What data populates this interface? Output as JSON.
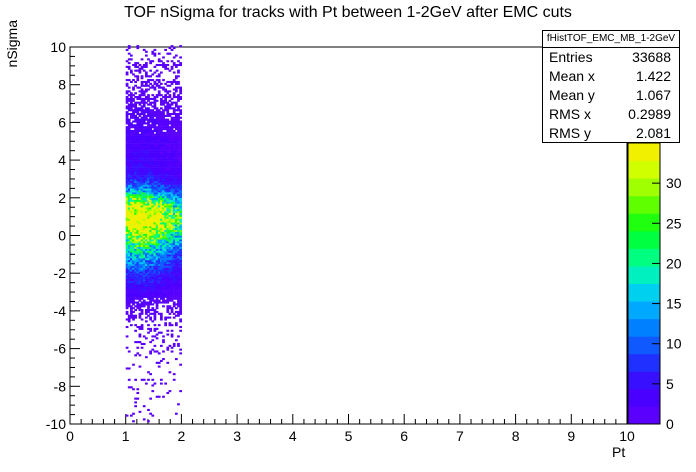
{
  "title": "TOF nSigma for tracks with Pt between 1-2GeV after EMC cuts",
  "stats_box": {
    "name": "fHistTOF_EMC_MB_1-2GeV",
    "rows": [
      {
        "label": "Entries",
        "value": "33688"
      },
      {
        "label": "Mean x",
        "value": "1.422"
      },
      {
        "label": "Mean y",
        "value": "1.067"
      },
      {
        "label": "RMS x",
        "value": "0.2989"
      },
      {
        "label": "RMS y",
        "value": "2.081"
      }
    ]
  },
  "chart_data": {
    "type": "heatmap",
    "title": "TOF nSigma for tracks with Pt between 1-2GeV after EMC cuts",
    "xlabel": "Pt",
    "ylabel": "nSigma",
    "xlim": [
      0,
      10
    ],
    "ylim": [
      -10,
      10
    ],
    "x_ticks": [
      "0",
      "1",
      "2",
      "3",
      "4",
      "5",
      "6",
      "7",
      "8",
      "9",
      "10"
    ],
    "y_ticks": [
      "-10",
      "-8",
      "-6",
      "-4",
      "-2",
      "0",
      "2",
      "4",
      "6",
      "8",
      "10"
    ],
    "z_ticks": [
      "0",
      "5",
      "10",
      "15",
      "20",
      "25",
      "30"
    ],
    "zlim": [
      0,
      35
    ],
    "palette": [
      "#5a00ff",
      "#4a00ff",
      "#3810ff",
      "#2030ff",
      "#1058ff",
      "#0080ff",
      "#00a8ff",
      "#00d0f0",
      "#00f0c0",
      "#00ff80",
      "#00ff40",
      "#20ff10",
      "#60ff00",
      "#a0ff00",
      "#d0ff00",
      "#f0f000"
    ],
    "populated_x_range": [
      1.0,
      2.0
    ],
    "description_profile": [
      {
        "y": 1.0,
        "peak_count": 34
      },
      {
        "y": 0.0,
        "peak_count": 22
      },
      {
        "y": 2.0,
        "peak_count": 15
      },
      {
        "y": -1.5,
        "peak_count": 10
      },
      {
        "y": 4.0,
        "peak_count": 5
      },
      {
        "y": 8.0,
        "peak_count": 2
      },
      {
        "y": -4.0,
        "peak_count": 1
      },
      {
        "y": -8.0,
        "peak_count": 1
      }
    ]
  }
}
